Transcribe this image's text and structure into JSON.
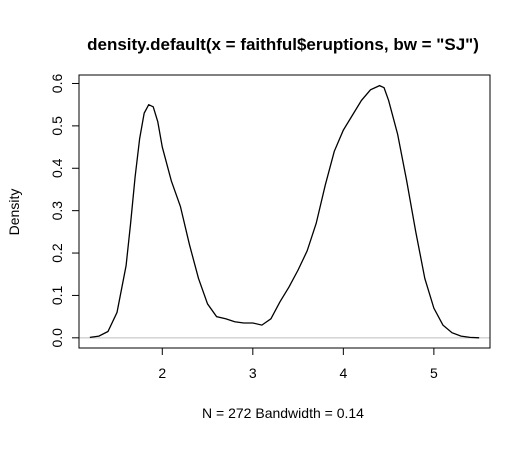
{
  "chart_data": {
    "type": "line",
    "title": "density.default(x = faithful$eruptions, bw = \"SJ\")",
    "xlabel": "N = 272   Bandwidth = 0.14",
    "ylabel": "Density",
    "xlim": [
      1.08,
      5.62
    ],
    "ylim": [
      -0.024,
      0.62
    ],
    "x_ticks": [
      2,
      3,
      4,
      5
    ],
    "y_ticks": [
      0.0,
      0.1,
      0.2,
      0.3,
      0.4,
      0.5,
      0.6
    ],
    "x_tick_labels": [
      "2",
      "3",
      "4",
      "5"
    ],
    "y_tick_labels": [
      "0.0",
      "0.1",
      "0.2",
      "0.3",
      "0.4",
      "0.5",
      "0.6"
    ],
    "baseline": 0,
    "grid": false,
    "legend": "none",
    "colors": {
      "line": "#000000",
      "baseline": "#bebebe",
      "frame": "#000000"
    },
    "series": [
      {
        "x": [
          1.2,
          1.3,
          1.4,
          1.5,
          1.6,
          1.65,
          1.7,
          1.75,
          1.8,
          1.85,
          1.9,
          1.95,
          2.0,
          2.1,
          2.2,
          2.3,
          2.4,
          2.5,
          2.6,
          2.7,
          2.8,
          2.9,
          3.0,
          3.1,
          3.2,
          3.3,
          3.4,
          3.5,
          3.6,
          3.7,
          3.8,
          3.9,
          4.0,
          4.1,
          4.2,
          4.3,
          4.4,
          4.45,
          4.5,
          4.6,
          4.7,
          4.8,
          4.9,
          5.0,
          5.1,
          5.2,
          5.3,
          5.4,
          5.5
        ],
        "values": [
          0.001,
          0.004,
          0.015,
          0.06,
          0.17,
          0.27,
          0.38,
          0.47,
          0.53,
          0.55,
          0.545,
          0.51,
          0.45,
          0.37,
          0.31,
          0.22,
          0.14,
          0.08,
          0.05,
          0.045,
          0.038,
          0.035,
          0.035,
          0.03,
          0.045,
          0.085,
          0.12,
          0.16,
          0.205,
          0.27,
          0.36,
          0.44,
          0.49,
          0.525,
          0.56,
          0.585,
          0.595,
          0.59,
          0.56,
          0.48,
          0.37,
          0.25,
          0.14,
          0.07,
          0.03,
          0.012,
          0.004,
          0.001,
          0.0
        ]
      }
    ]
  }
}
